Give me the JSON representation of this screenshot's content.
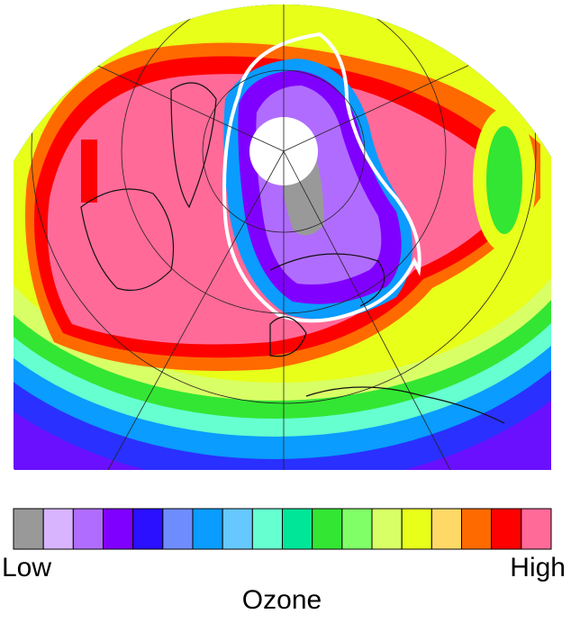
{
  "legend": {
    "colors": [
      "#999999",
      "#d8b4fe",
      "#b06cff",
      "#8000ff",
      "#2a10ff",
      "#6f8cff",
      "#0a9cff",
      "#66c8ff",
      "#66ffd0",
      "#00e699",
      "#33e633",
      "#80ff66",
      "#d9ff66",
      "#e8ff1a",
      "#ffd966",
      "#ff6a00",
      "#ff0000",
      "#ff6a99"
    ],
    "low_label": "Low",
    "high_label": "High",
    "title": "Ozone"
  }
}
